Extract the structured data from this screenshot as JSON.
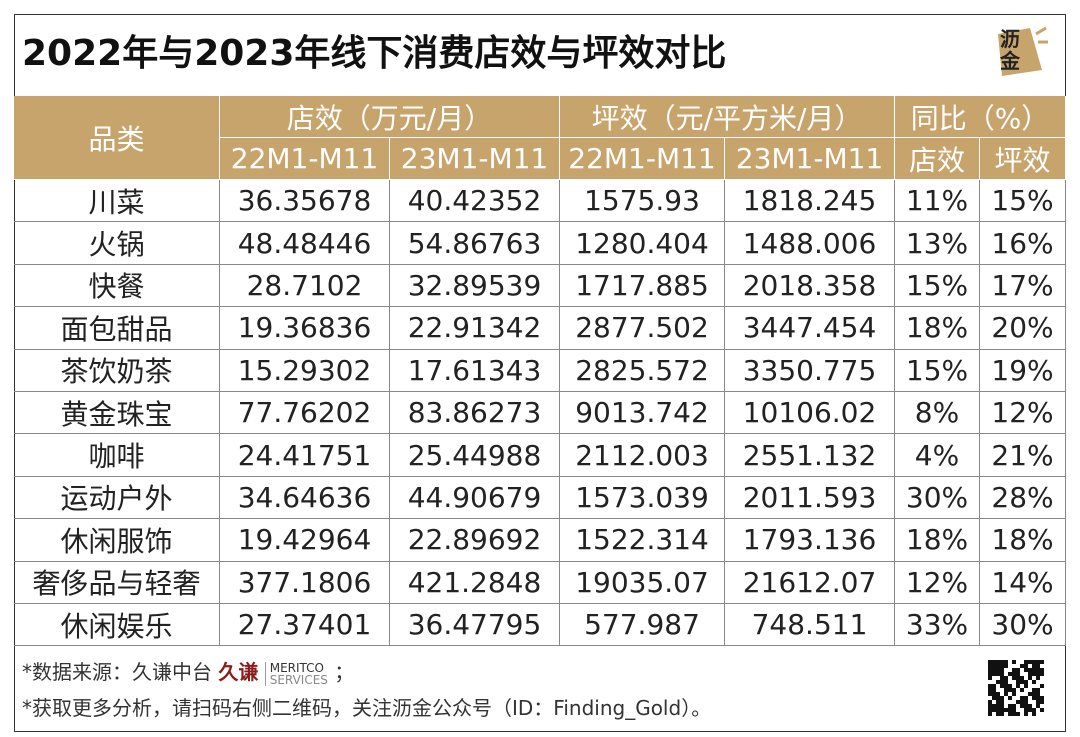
{
  "header": {
    "title": "2022年与2023年线下消费店效与坪效对比",
    "logo": "沥金"
  },
  "table": {
    "category_header": "品类",
    "groups": [
      "店效（万元/月）",
      "坪效（元/平方米/月）",
      "同比（%）"
    ],
    "subheaders": [
      "22M1-M11",
      "23M1-M11",
      "22M1-M11",
      "23M1-M11",
      "店效",
      "坪效"
    ],
    "rows": [
      [
        "川菜",
        "36.35678",
        "40.42352",
        "1575.93",
        "1818.245",
        "11%",
        "15%"
      ],
      [
        "火锅",
        "48.48446",
        "54.86763",
        "1280.404",
        "1488.006",
        "13%",
        "16%"
      ],
      [
        "快餐",
        "28.7102",
        "32.89539",
        "1717.885",
        "2018.358",
        "15%",
        "17%"
      ],
      [
        "面包甜品",
        "19.36836",
        "22.91342",
        "2877.502",
        "3447.454",
        "18%",
        "20%"
      ],
      [
        "茶饮奶茶",
        "15.29302",
        "17.61343",
        "2825.572",
        "3350.775",
        "15%",
        "19%"
      ],
      [
        "黄金珠宝",
        "77.76202",
        "83.86273",
        "9013.742",
        "10106.02",
        "8%",
        "12%"
      ],
      [
        "咖啡",
        "24.41751",
        "25.44988",
        "2112.003",
        "2551.132",
        "4%",
        "21%"
      ],
      [
        "运动户外",
        "34.64636",
        "44.90679",
        "1573.039",
        "2011.593",
        "30%",
        "28%"
      ],
      [
        "休闲服饰",
        "19.42964",
        "22.89692",
        "1522.314",
        "1793.136",
        "18%",
        "18%"
      ],
      [
        "奢侈品与轻奢",
        "377.1806",
        "421.2848",
        "19035.07",
        "21612.07",
        "12%",
        "14%"
      ],
      [
        "休闲娱乐",
        "27.37401",
        "36.47795",
        "577.987",
        "748.511",
        "33%",
        "30%"
      ]
    ]
  },
  "footer": {
    "source_prefix": "*数据来源：久谦中台",
    "source_logo_cn": "久谦",
    "source_logo_en": "MERITCO",
    "source_logo_sub": "SERVICES",
    "source_suffix": "；",
    "note": "*获取更多分析，请扫码右侧二维码，关注沥金公众号（ID：Finding_Gold）。"
  }
}
